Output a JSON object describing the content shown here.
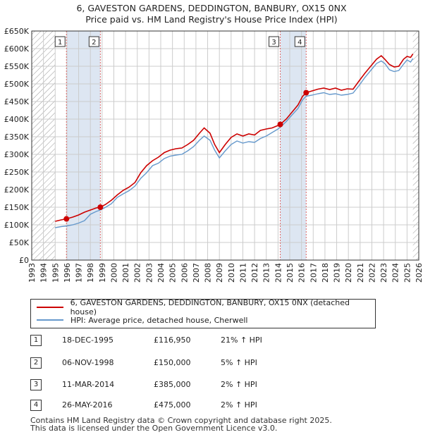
{
  "title_line1": "6, GAVESTON GARDENS, DEDDINGTON, BANBURY, OX15 0NX",
  "title_line2": "Price paid vs. HM Land Registry's House Price Index (HPI)",
  "colors": {
    "price_line": "#cc0000",
    "hpi_line": "#6699cc",
    "highlight": "#dde6f2",
    "hatch": "#999999",
    "marker_line": "#dd6666"
  },
  "chart_data": {
    "type": "line",
    "title": "Price paid vs. HM Land Registry's House Price Index (HPI)",
    "xlabel": "",
    "ylabel": "",
    "xlim": [
      1993,
      2026
    ],
    "ylim": [
      0,
      650000
    ],
    "data_start": 1995.0,
    "data_end": 2025.5,
    "x_ticks": [
      1993,
      1994,
      1995,
      1996,
      1997,
      1998,
      1999,
      2000,
      2001,
      2002,
      2003,
      2004,
      2005,
      2006,
      2007,
      2008,
      2009,
      2010,
      2011,
      2012,
      2013,
      2014,
      2015,
      2016,
      2017,
      2018,
      2019,
      2020,
      2021,
      2022,
      2023,
      2024,
      2025,
      2026
    ],
    "y_ticks": [
      {
        "value": 0,
        "label": "£0"
      },
      {
        "value": 50000,
        "label": "£50K"
      },
      {
        "value": 100000,
        "label": "£100K"
      },
      {
        "value": 150000,
        "label": "£150K"
      },
      {
        "value": 200000,
        "label": "£200K"
      },
      {
        "value": 250000,
        "label": "£250K"
      },
      {
        "value": 300000,
        "label": "£300K"
      },
      {
        "value": 350000,
        "label": "£350K"
      },
      {
        "value": 400000,
        "label": "£400K"
      },
      {
        "value": 450000,
        "label": "£450K"
      },
      {
        "value": 500000,
        "label": "£500K"
      },
      {
        "value": 550000,
        "label": "£550K"
      },
      {
        "value": 600000,
        "label": "£600K"
      },
      {
        "value": 650000,
        "label": "£650K"
      }
    ],
    "series": [
      {
        "name": "6, GAVESTON GARDENS, DEDDINGTON, BANBURY, OX15 0NX (detached house)",
        "color": "#cc0000",
        "points": [
          [
            1995.0,
            110000
          ],
          [
            1995.5,
            114000
          ],
          [
            1995.96,
            116950
          ],
          [
            1996.5,
            122000
          ],
          [
            1997.0,
            128000
          ],
          [
            1997.5,
            136000
          ],
          [
            1998.0,
            142000
          ],
          [
            1998.5,
            148000
          ],
          [
            1998.85,
            150000
          ],
          [
            1999.3,
            158000
          ],
          [
            1999.8,
            170000
          ],
          [
            2000.3,
            185000
          ],
          [
            2000.8,
            198000
          ],
          [
            2001.3,
            207000
          ],
          [
            2001.8,
            220000
          ],
          [
            2002.3,
            248000
          ],
          [
            2002.8,
            268000
          ],
          [
            2003.3,
            282000
          ],
          [
            2003.8,
            292000
          ],
          [
            2004.3,
            305000
          ],
          [
            2004.8,
            312000
          ],
          [
            2005.3,
            316000
          ],
          [
            2005.8,
            318000
          ],
          [
            2006.3,
            328000
          ],
          [
            2006.8,
            340000
          ],
          [
            2007.3,
            360000
          ],
          [
            2007.7,
            375000
          ],
          [
            2008.2,
            360000
          ],
          [
            2008.6,
            328000
          ],
          [
            2009.0,
            305000
          ],
          [
            2009.5,
            328000
          ],
          [
            2010.0,
            348000
          ],
          [
            2010.5,
            358000
          ],
          [
            2011.0,
            352000
          ],
          [
            2011.5,
            358000
          ],
          [
            2012.0,
            355000
          ],
          [
            2012.5,
            368000
          ],
          [
            2013.0,
            372000
          ],
          [
            2013.5,
            375000
          ],
          [
            2014.0,
            382000
          ],
          [
            2014.19,
            385000
          ],
          [
            2014.7,
            400000
          ],
          [
            2015.2,
            420000
          ],
          [
            2015.7,
            440000
          ],
          [
            2016.1,
            465000
          ],
          [
            2016.4,
            475000
          ],
          [
            2016.9,
            480000
          ],
          [
            2017.4,
            485000
          ],
          [
            2017.9,
            488000
          ],
          [
            2018.4,
            484000
          ],
          [
            2018.9,
            488000
          ],
          [
            2019.4,
            482000
          ],
          [
            2019.9,
            486000
          ],
          [
            2020.4,
            485000
          ],
          [
            2020.9,
            508000
          ],
          [
            2021.4,
            530000
          ],
          [
            2021.9,
            550000
          ],
          [
            2022.4,
            570000
          ],
          [
            2022.8,
            580000
          ],
          [
            2023.1,
            570000
          ],
          [
            2023.5,
            555000
          ],
          [
            2023.9,
            548000
          ],
          [
            2024.3,
            550000
          ],
          [
            2024.7,
            570000
          ],
          [
            2025.0,
            578000
          ],
          [
            2025.3,
            575000
          ],
          [
            2025.5,
            585000
          ]
        ]
      },
      {
        "name": "HPI: Average price, detached house, Cherwell",
        "color": "#6699cc",
        "points": [
          [
            1995.0,
            92000
          ],
          [
            1995.5,
            95000
          ],
          [
            1996.0,
            97000
          ],
          [
            1996.5,
            100000
          ],
          [
            1997.0,
            105000
          ],
          [
            1997.5,
            112000
          ],
          [
            1998.0,
            130000
          ],
          [
            1998.5,
            138000
          ],
          [
            1998.85,
            142000
          ],
          [
            1999.3,
            150000
          ],
          [
            1999.8,
            160000
          ],
          [
            2000.3,
            178000
          ],
          [
            2000.8,
            188000
          ],
          [
            2001.3,
            197000
          ],
          [
            2001.8,
            210000
          ],
          [
            2002.3,
            232000
          ],
          [
            2002.8,
            248000
          ],
          [
            2003.3,
            268000
          ],
          [
            2003.8,
            275000
          ],
          [
            2004.3,
            288000
          ],
          [
            2004.8,
            295000
          ],
          [
            2005.3,
            298000
          ],
          [
            2005.8,
            300000
          ],
          [
            2006.3,
            310000
          ],
          [
            2006.8,
            322000
          ],
          [
            2007.3,
            340000
          ],
          [
            2007.7,
            352000
          ],
          [
            2008.2,
            340000
          ],
          [
            2008.6,
            312000
          ],
          [
            2009.0,
            290000
          ],
          [
            2009.5,
            310000
          ],
          [
            2010.0,
            328000
          ],
          [
            2010.5,
            338000
          ],
          [
            2011.0,
            332000
          ],
          [
            2011.5,
            336000
          ],
          [
            2012.0,
            334000
          ],
          [
            2012.5,
            345000
          ],
          [
            2013.0,
            352000
          ],
          [
            2013.5,
            362000
          ],
          [
            2014.0,
            372000
          ],
          [
            2014.19,
            377000
          ],
          [
            2014.7,
            393000
          ],
          [
            2015.2,
            412000
          ],
          [
            2015.7,
            430000
          ],
          [
            2016.1,
            455000
          ],
          [
            2016.4,
            465000
          ],
          [
            2016.9,
            468000
          ],
          [
            2017.4,
            472000
          ],
          [
            2017.9,
            475000
          ],
          [
            2018.4,
            470000
          ],
          [
            2018.9,
            472000
          ],
          [
            2019.4,
            468000
          ],
          [
            2019.9,
            470000
          ],
          [
            2020.4,
            474000
          ],
          [
            2020.9,
            495000
          ],
          [
            2021.4,
            518000
          ],
          [
            2021.9,
            538000
          ],
          [
            2022.4,
            558000
          ],
          [
            2022.8,
            565000
          ],
          [
            2023.1,
            558000
          ],
          [
            2023.5,
            540000
          ],
          [
            2023.9,
            535000
          ],
          [
            2024.3,
            538000
          ],
          [
            2024.7,
            556000
          ],
          [
            2025.0,
            568000
          ],
          [
            2025.3,
            562000
          ],
          [
            2025.5,
            572000
          ]
        ]
      }
    ],
    "transactions": [
      {
        "label": "1",
        "x": 1995.96,
        "price": 116950
      },
      {
        "label": "2",
        "x": 1998.85,
        "price": 150000
      },
      {
        "label": "3",
        "x": 2014.19,
        "price": 385000
      },
      {
        "label": "4",
        "x": 2016.4,
        "price": 475000
      }
    ],
    "highlight_bands": [
      [
        1995.96,
        1998.85
      ],
      [
        2014.19,
        2016.4
      ]
    ]
  },
  "legend": {
    "price_label": "6, GAVESTON GARDENS, DEDDINGTON, BANBURY, OX15 0NX (detached house)",
    "hpi_label": "HPI: Average price, detached house, Cherwell"
  },
  "transactions_table": [
    {
      "num": "1",
      "date": "18-DEC-1995",
      "price": "£116,950",
      "hpi": "21% ↑ HPI"
    },
    {
      "num": "2",
      "date": "06-NOV-1998",
      "price": "£150,000",
      "hpi": "5% ↑ HPI"
    },
    {
      "num": "3",
      "date": "11-MAR-2014",
      "price": "£385,000",
      "hpi": "2% ↑ HPI"
    },
    {
      "num": "4",
      "date": "26-MAY-2016",
      "price": "£475,000",
      "hpi": "2% ↑ HPI"
    }
  ],
  "footer_line1": "Contains HM Land Registry data © Crown copyright and database right 2025.",
  "footer_line2": "This data is licensed under the Open Government Licence v3.0."
}
